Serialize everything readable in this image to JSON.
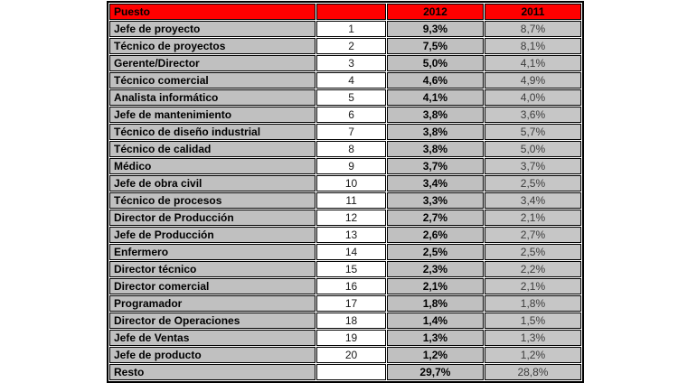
{
  "colors": {
    "header_bg": "#ff0000",
    "header_text": "#000000",
    "cell_bg_gray": "#c0c0c0",
    "rank_bg": "#ffffff",
    "border": "#000000",
    "col2011_text": "#3c3c3c"
  },
  "chart_data": {
    "type": "table",
    "title": "",
    "headers": {
      "puesto": "Puesto",
      "rank": "",
      "y2012": "2012",
      "y2011": "2011"
    },
    "rows": [
      {
        "puesto": "Jefe de proyecto",
        "rank": "1",
        "y2012": "9,3%",
        "y2011": "8,7%"
      },
      {
        "puesto": "Técnico de proyectos",
        "rank": "2",
        "y2012": "7,5%",
        "y2011": "8,1%"
      },
      {
        "puesto": "Gerente/Director",
        "rank": "3",
        "y2012": "5,0%",
        "y2011": "4,1%"
      },
      {
        "puesto": "Técnico comercial",
        "rank": "4",
        "y2012": "4,6%",
        "y2011": "4,9%"
      },
      {
        "puesto": "Analista informático",
        "rank": "5",
        "y2012": "4,1%",
        "y2011": "4,0%"
      },
      {
        "puesto": "Jefe de mantenimiento",
        "rank": "6",
        "y2012": "3,8%",
        "y2011": "3,6%"
      },
      {
        "puesto": "Técnico de diseño industrial",
        "rank": "7",
        "y2012": "3,8%",
        "y2011": "5,7%"
      },
      {
        "puesto": "Técnico de calidad",
        "rank": "8",
        "y2012": "3,8%",
        "y2011": "5,0%"
      },
      {
        "puesto": "Médico",
        "rank": "9",
        "y2012": "3,7%",
        "y2011": "3,7%"
      },
      {
        "puesto": "Jefe de obra civil",
        "rank": "10",
        "y2012": "3,4%",
        "y2011": "2,5%"
      },
      {
        "puesto": "Técnico de procesos",
        "rank": "11",
        "y2012": "3,3%",
        "y2011": "3,4%"
      },
      {
        "puesto": "Director de Producción",
        "rank": "12",
        "y2012": "2,7%",
        "y2011": "2,1%"
      },
      {
        "puesto": "Jefe de Producción",
        "rank": "13",
        "y2012": "2,6%",
        "y2011": "2,7%"
      },
      {
        "puesto": "Enfermero",
        "rank": "14",
        "y2012": "2,5%",
        "y2011": "2,5%"
      },
      {
        "puesto": "Director técnico",
        "rank": "15",
        "y2012": "2,3%",
        "y2011": "2,2%"
      },
      {
        "puesto": "Director comercial",
        "rank": "16",
        "y2012": "2,1%",
        "y2011": "2,1%"
      },
      {
        "puesto": "Programador",
        "rank": "17",
        "y2012": "1,8%",
        "y2011": "1,8%"
      },
      {
        "puesto": "Director de Operaciones",
        "rank": "18",
        "y2012": "1,4%",
        "y2011": "1,5%"
      },
      {
        "puesto": "Jefe de Ventas",
        "rank": "19",
        "y2012": "1,3%",
        "y2011": "1,3%"
      },
      {
        "puesto": "Jefe de producto",
        "rank": "20",
        "y2012": "1,2%",
        "y2011": "1,2%"
      },
      {
        "puesto": "Resto",
        "rank": "",
        "y2012": "29,7%",
        "y2011": "28,8%"
      }
    ]
  }
}
